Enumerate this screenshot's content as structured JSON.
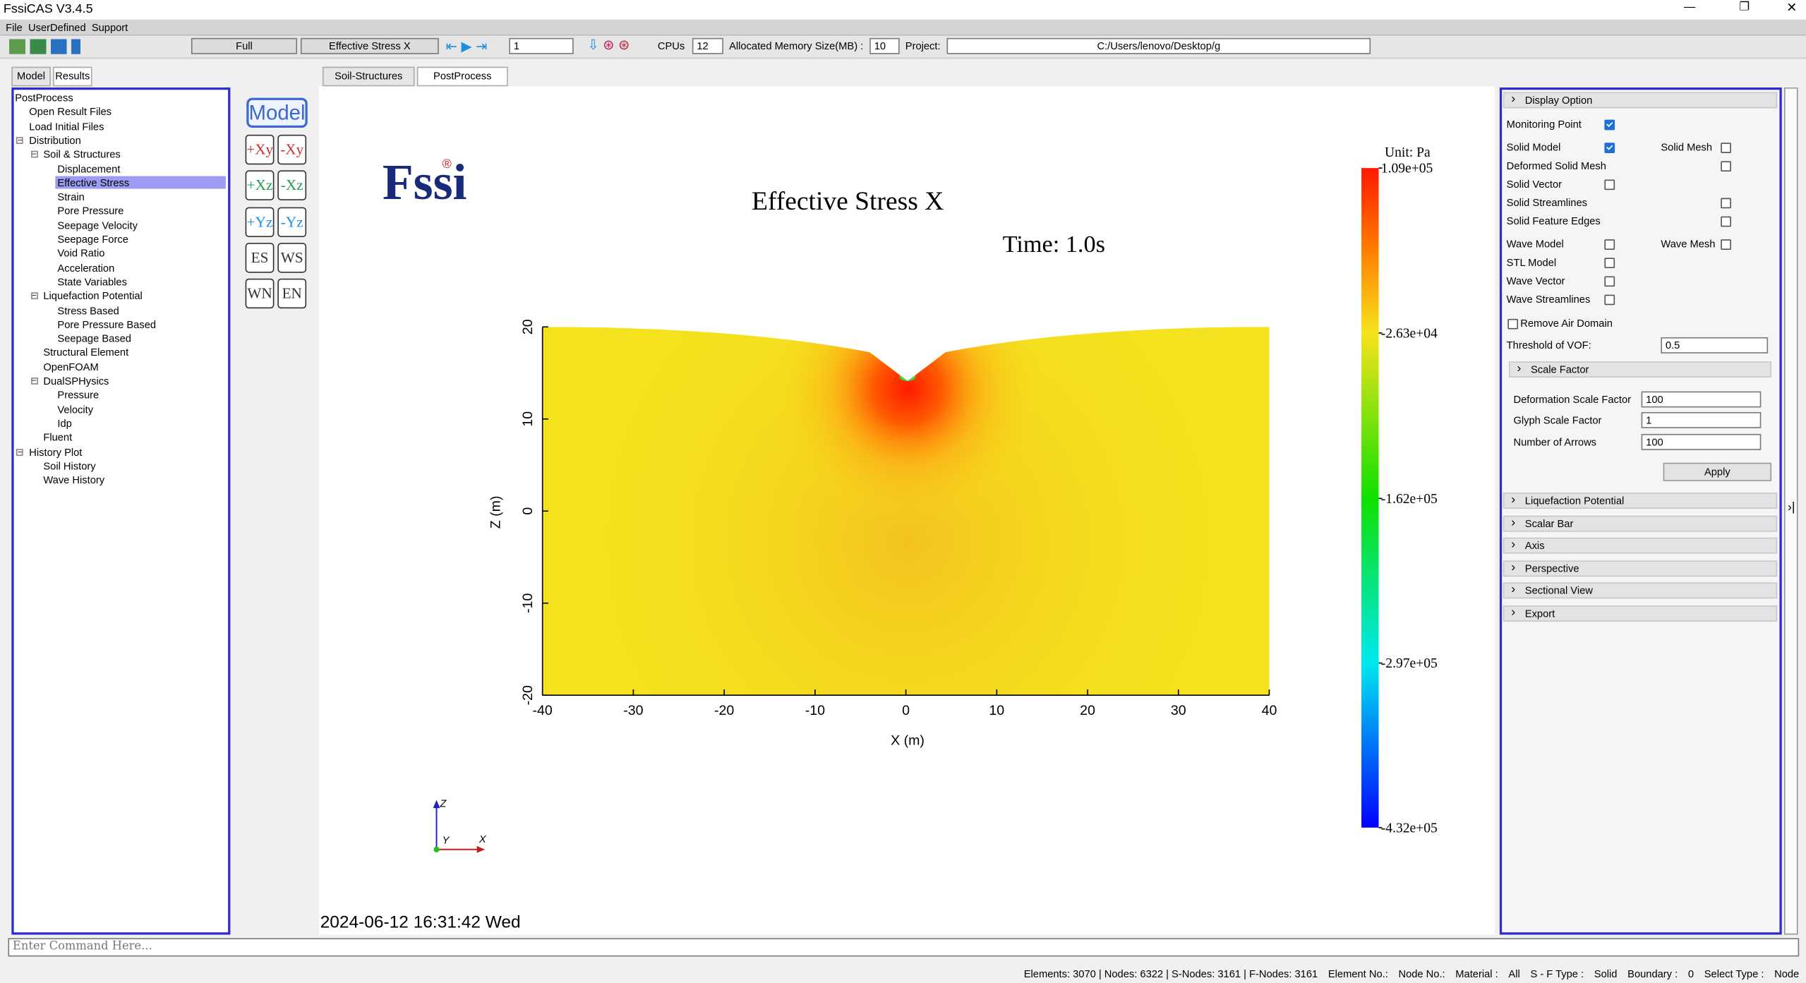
{
  "window": {
    "title": "FssiCAS V3.4.5"
  },
  "menu": [
    "File",
    "UserDefined",
    "Support"
  ],
  "toolbar": {
    "view": "Full",
    "variable": "Effective Stress X",
    "step": "1",
    "cpus_label": "CPUs",
    "cpus": "12",
    "memory_label": "Allocated Memory Size(MB) :",
    "memory": "10",
    "project_label": "Project:",
    "project": "C:/Users/lenovo/Desktop/g"
  },
  "left_tabs": [
    "Model",
    "Results"
  ],
  "tree": [
    {
      "label": "PostProcess",
      "children": [
        {
          "label": "Open Result Files"
        },
        {
          "label": "Load Initial Files"
        },
        {
          "label": "Distribution",
          "children": [
            {
              "label": "Soil & Structures",
              "children": [
                {
                  "label": "Displacement"
                },
                {
                  "label": "Effective Stress",
                  "selected": true
                },
                {
                  "label": "Strain"
                },
                {
                  "label": "Pore Pressure"
                },
                {
                  "label": "Seepage Velocity"
                },
                {
                  "label": "Seepage Force"
                },
                {
                  "label": "Void Ratio"
                },
                {
                  "label": "Acceleration"
                },
                {
                  "label": "State Variables"
                }
              ]
            },
            {
              "label": "Liquefaction Potential",
              "children": [
                {
                  "label": "Stress Based"
                },
                {
                  "label": "Pore Pressure Based"
                },
                {
                  "label": "Seepage Based"
                }
              ]
            },
            {
              "label": "Structural Element"
            },
            {
              "label": "OpenFOAM"
            },
            {
              "label": "DualSPHysics",
              "children": [
                {
                  "label": "Pressure"
                },
                {
                  "label": "Velocity"
                },
                {
                  "label": "Idp"
                }
              ]
            },
            {
              "label": "Fluent"
            }
          ]
        },
        {
          "label": "History Plot",
          "children": [
            {
              "label": "Soil History"
            },
            {
              "label": "Wave History"
            }
          ]
        }
      ]
    }
  ],
  "view_buttons": {
    "model": "Model",
    "views": [
      "+Xy",
      "-Xy",
      "+Xz",
      "-Xz",
      "+Yz",
      "-Yz",
      "ES",
      "WS",
      "WN",
      "EN"
    ]
  },
  "center_tabs": [
    "Soil-Structures",
    "PostProcess"
  ],
  "plot": {
    "logo": "Fssi",
    "logo_mark": "®",
    "title": "Effective Stress X",
    "time": "Time: 1.0s",
    "xlabel": "X (m)",
    "ylabel": "Z (m)",
    "xlim": [
      -40,
      40
    ],
    "xticks": [
      -40,
      -30,
      -20,
      -10,
      0,
      10,
      20,
      30,
      40
    ],
    "ylim": [
      -20,
      20
    ],
    "yticks": [
      -20,
      -10,
      0,
      10,
      20
    ],
    "colorbar": {
      "unit": "Unit:  Pa",
      "clim": [
        -432000,
        109000
      ],
      "ticks": [
        {
          "value": 109000,
          "label": "1.09e+05"
        },
        {
          "value": -26300,
          "label": "-2.63e+04"
        },
        {
          "value": -162000,
          "label": "-1.62e+05"
        },
        {
          "value": -297000,
          "label": "-2.97e+05"
        },
        {
          "value": -432000,
          "label": "-4.32e+05"
        }
      ]
    },
    "triad": [
      "Z",
      "Y",
      "X"
    ]
  },
  "datetime": "2024-06-12 16:31:42 Wed",
  "right_panel": {
    "header": "Display Option",
    "options": [
      {
        "label": "Monitoring Point",
        "checked": true
      },
      {
        "label": "Solid Model",
        "checked": true,
        "extra": {
          "label": "Solid Mesh",
          "checked": false
        }
      },
      {
        "label": "Deformed Solid Mesh",
        "checked": false
      },
      {
        "label": "Solid Vector",
        "checked": false
      },
      {
        "label": "Solid Streamlines",
        "checked": false
      },
      {
        "label": "Solid Feature Edges",
        "checked": false
      },
      {
        "label": "Wave Model",
        "checked": false,
        "extra": {
          "label": "Wave Mesh",
          "checked": false
        }
      },
      {
        "label": "STL Model",
        "checked": false
      },
      {
        "label": "Wave Vector",
        "checked": false
      },
      {
        "label": "Wave Streamlines",
        "checked": false
      }
    ],
    "remove_air": {
      "label": "Remove Air Domain",
      "checked": false
    },
    "threshold": {
      "label": "Threshold of VOF:",
      "value": "0.5"
    },
    "scale_factor": {
      "header": "Scale Factor",
      "fields": [
        {
          "label": "Deformation Scale Factor",
          "value": "100"
        },
        {
          "label": "Glyph Scale Factor",
          "value": "1"
        },
        {
          "label": "Number of Arrows",
          "value": "100"
        }
      ],
      "apply": "Apply"
    },
    "sections": [
      "Liquefaction Potential",
      "Scalar Bar",
      "Axis",
      "Perspective",
      "Sectional View",
      "Export"
    ]
  },
  "command_placeholder": "Enter Command Here...",
  "status": [
    "Elements: 3070 | Nodes: 6322 | S-Nodes: 3161 | F-Nodes: 3161",
    "Element No.:",
    "Node No.:",
    "Material :",
    "All",
    "S - F Type :",
    "Solid",
    "Boundary :",
    "0",
    "Select Type :",
    "Node"
  ]
}
